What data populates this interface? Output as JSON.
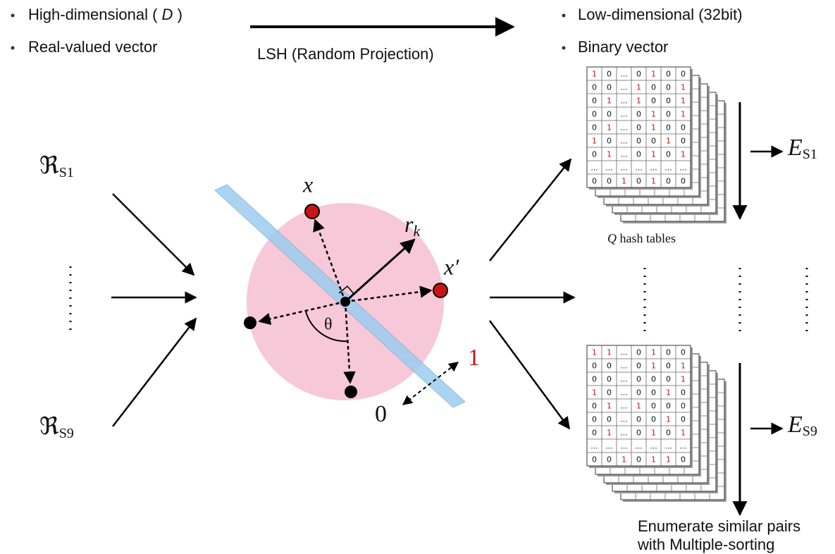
{
  "header": {
    "left_line1": "High-dimensional (",
    "left_symbol": "D",
    "left_close": ")",
    "left_line2": "Real-valued vector",
    "arrow_label": "LSH (Random Projection)",
    "right_line1": "Low-dimensional (32bit)",
    "right_line2": "Binary vector"
  },
  "inputs": [
    {
      "symbol": "ℜ",
      "subscript": "S1"
    },
    {
      "symbol": "ℜ",
      "subscript": "S9"
    }
  ],
  "projection": {
    "point_x": "x",
    "point_x_prime": "x′",
    "vector": "r",
    "vector_subscript": "k",
    "angle": "θ",
    "one": "1",
    "zero": "0"
  },
  "hash_tables": [
    {
      "rows": [
        [
          "1",
          "0",
          "...",
          "0",
          "1",
          "0",
          "0"
        ],
        [
          "0",
          "0",
          "...",
          "1",
          "0",
          "0",
          "1"
        ],
        [
          "0",
          "1",
          "...",
          "1",
          "0",
          "0",
          "1"
        ],
        [
          "0",
          "0",
          "...",
          "0",
          "1",
          "0",
          "1"
        ],
        [
          "0",
          "1",
          "...",
          "0",
          "1",
          "0",
          "0"
        ],
        [
          "1",
          "0",
          "...",
          "0",
          "0",
          "1",
          "0"
        ],
        [
          "0",
          "1",
          "...",
          "0",
          "1",
          "0",
          "1"
        ],
        [
          "...",
          "...",
          "...",
          "...",
          "...",
          "...",
          "..."
        ],
        [
          "0",
          "0",
          "1",
          "0",
          "1",
          "0",
          "0"
        ]
      ],
      "output": {
        "symbol": "E",
        "subscript": "S1"
      }
    },
    {
      "rows": [
        [
          "1",
          "1",
          "...",
          "0",
          "1",
          "0",
          "0"
        ],
        [
          "0",
          "0",
          "...",
          "0",
          "1",
          "0",
          "1"
        ],
        [
          "0",
          "0",
          "...",
          "0",
          "0",
          "0",
          "1"
        ],
        [
          "1",
          "0",
          "...",
          "0",
          "0",
          "1",
          "0"
        ],
        [
          "0",
          "1",
          "...",
          "1",
          "0",
          "0",
          "0"
        ],
        [
          "0",
          "0",
          "...",
          "0",
          "0",
          "1",
          "0"
        ],
        [
          "0",
          "1",
          "...",
          "0",
          "1",
          "0",
          "1"
        ],
        [
          "...",
          "...",
          "...",
          "...",
          "...",
          "...",
          "..."
        ],
        [
          "0",
          "0",
          "1",
          "0",
          "1",
          "1",
          "0"
        ]
      ],
      "output": {
        "symbol": "E",
        "subscript": "S9"
      }
    }
  ],
  "tables_caption": {
    "symbol": "Q",
    "text": "hash tables"
  },
  "footer": {
    "line1": "Enumerate similar pairs",
    "line2": "with Multiple-sorting"
  }
}
